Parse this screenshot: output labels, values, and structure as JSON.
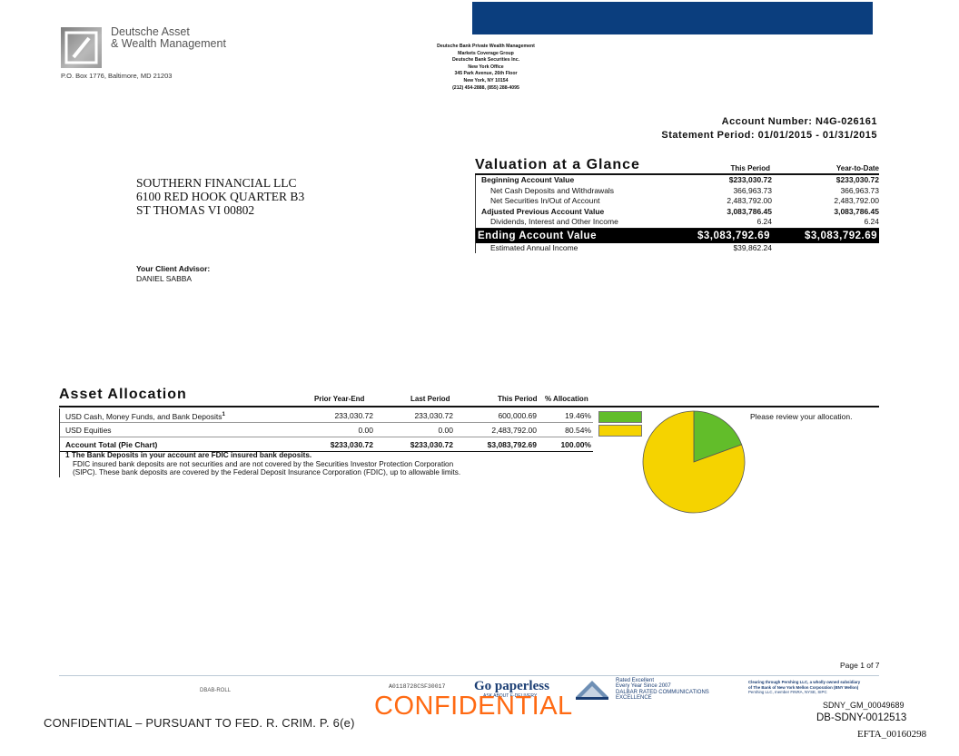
{
  "header": {
    "logo_line1": "Deutsche Asset",
    "logo_line2": "& Wealth Management",
    "po_box": "P.O. Box 1776, Baltimore, MD 21203",
    "bank_lines": [
      "Deutsche Bank Private Wealth Management",
      "Markets Coverage Group",
      "Deutsche Bank Securities Inc.",
      "New York Office",
      "345 Park Avenue, 26th Floor",
      "New York, NY 10154",
      "(212) 454-2888, (855) 288-4095"
    ],
    "account_number": "Account Number: N4G-026161",
    "statement_period": "Statement Period: 01/01/2015 - 01/31/2015"
  },
  "client": {
    "name": "SOUTHERN FINANCIAL LLC",
    "address1": "6100 RED HOOK QUARTER B3",
    "address2": "ST THOMAS VI 00802",
    "advisor_label": "Your Client Advisor:",
    "advisor_name": "DANIEL SABBA"
  },
  "valuation": {
    "title": "Valuation at a Glance",
    "col_period": "This Period",
    "col_ytd": "Year-to-Date",
    "rows": [
      {
        "label": "Beginning Account Value",
        "period": "$233,030.72",
        "ytd": "$233,030.72"
      },
      {
        "label": "Net Cash Deposits and Withdrawals",
        "period": "366,963.73",
        "ytd": "366,963.73"
      },
      {
        "label": "Net Securities In/Out of Account",
        "period": "2,483,792.00",
        "ytd": "2,483,792.00"
      },
      {
        "label": "Adjusted Previous Account Value",
        "period": "3,083,786.45",
        "ytd": "3,083,786.45"
      },
      {
        "label": "Dividends, Interest and Other Income",
        "period": "6.24",
        "ytd": "6.24"
      },
      {
        "label": "Ending Account Value",
        "period": "$3,083,792.69",
        "ytd": "$3,083,792.69"
      },
      {
        "label": "Estimated Annual Income",
        "period": "$39,862.24",
        "ytd": ""
      }
    ]
  },
  "asset_allocation": {
    "title": "Asset Allocation",
    "col_prior": "Prior Year-End",
    "col_last": "Last Period",
    "col_this": "This Period",
    "col_pct": "% Allocation",
    "rows": [
      {
        "label": "USD Cash, Money Funds, and Bank Deposits",
        "footnote": "1",
        "prior": "233,030.72",
        "last": "233,030.72",
        "this": "600,000.69",
        "pct": "19.46%",
        "color": "#62bd2a"
      },
      {
        "label": "USD Equities",
        "footnote": "",
        "prior": "0.00",
        "last": "0.00",
        "this": "2,483,792.00",
        "pct": "80.54%",
        "color": "#f5d300"
      }
    ],
    "total": {
      "label": "Account Total (Pie Chart)",
      "prior": "$233,030.72",
      "last": "$233,030.72",
      "this": "$3,083,792.69",
      "pct": "100.00%"
    },
    "note_num": "1",
    "note_bold": "The Bank Deposits in your account are FDIC insured bank deposits.",
    "note_line2": "FDIC insured bank deposits are not securities and are not covered by the Securities Investor Protection Corporation",
    "note_line3": "(SIPC). These bank deposits are covered by the Federal Deposit Insurance Corporation (FDIC), up to allowable limits.",
    "review_text": "Please review your allocation."
  },
  "chart_data": {
    "type": "pie",
    "categories": [
      "USD Cash, Money Funds, and Bank Deposits",
      "USD Equities"
    ],
    "values": [
      19.46,
      80.54
    ],
    "colors": [
      "#62bd2a",
      "#f5d300"
    ],
    "title": "Account Total (Pie Chart)"
  },
  "footer": {
    "page": "Page 1 of 7",
    "dbab": "DBAB-ROLL",
    "code": "A0118728CSF30017",
    "paperless": "Go paperless",
    "paperless_sub": "ASK ABOUT E-DELIVERY",
    "dalbar_lines": [
      "Rated Excellent",
      "Every Year Since 2007",
      "DALBAR RATED COMMUNICATIONS",
      "EXCELLENCE"
    ],
    "pershing_line1": "Clearing through Pershing LLC, a wholly owned subsidiary",
    "pershing_line2": "of The Bank of New York Mellon Corporation (BNY Mellon)",
    "pershing_line3": "Pershing LLC, member FINRA, NYSE, SIPC",
    "sdny1": "SDNY_GM_00049689",
    "sdny2": "DB-SDNY-0012513",
    "efta": "EFTA_00160298",
    "confidential_left": "CONFIDENTIAL – PURSUANT TO FED. R. CRIM. P. 6(e)",
    "confidential_big": "CONFIDENTIAL"
  }
}
